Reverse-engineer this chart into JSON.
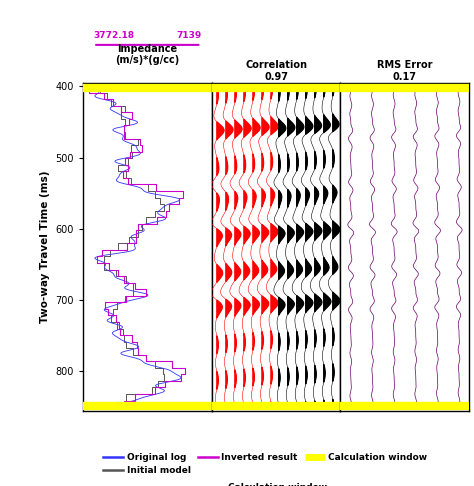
{
  "title_impedance": "Impedance\n(m/s)*(g/cc)",
  "title_correlation": "Correlation\n0.97",
  "title_rms": "RMS Error\n0.17",
  "impedance_min": "3772.18",
  "impedance_max": "7139",
  "ylabel": "Two-way Travel Time (ms)",
  "ymin": 395,
  "ymax": 855,
  "yticks": [
    400,
    500,
    600,
    700,
    800
  ],
  "calc_window_color": "#ffff00",
  "original_log_color": "#3333ff",
  "initial_model_color": "#555555",
  "inverted_result_color": "#cc00cc",
  "seismic_red_color": "#ff0000",
  "seismic_black_color": "#000000",
  "rms_color": "#660066",
  "bg_color": "#ffffff"
}
